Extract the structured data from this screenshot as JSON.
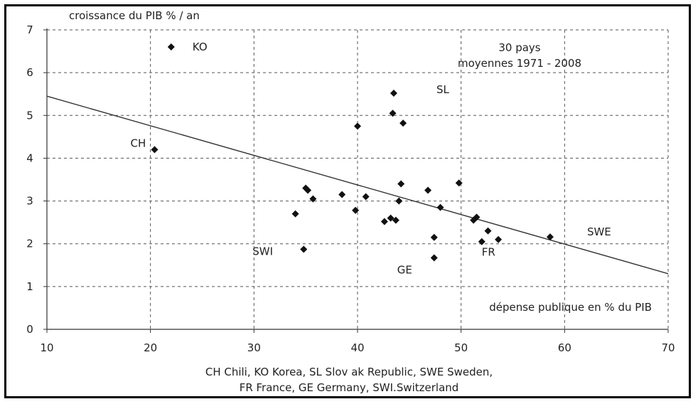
{
  "chart_data": {
    "type": "scatter",
    "ylabel": "croissance du PIB % / an",
    "xlabel": "dépense publique en % du PIB",
    "annotation_lines": [
      "30 pays",
      "moyennes 1971 - 2008"
    ],
    "xlim": [
      10,
      70
    ],
    "ylim": [
      0,
      7
    ],
    "x_ticks": [
      "10",
      "20",
      "30",
      "40",
      "50",
      "60",
      "70"
    ],
    "y_ticks": [
      "0",
      "1",
      "2",
      "3",
      "4",
      "5",
      "6",
      "7"
    ],
    "grid": true,
    "trend_line": {
      "x": [
        10,
        70
      ],
      "y": [
        5.45,
        1.3
      ]
    },
    "points": [
      {
        "x": 22.0,
        "y": 6.6,
        "label": "KO"
      },
      {
        "x": 20.4,
        "y": 4.2,
        "label": "CH"
      },
      {
        "x": 43.5,
        "y": 5.52,
        "label": "SL"
      },
      {
        "x": 43.4,
        "y": 5.05,
        "label": ""
      },
      {
        "x": 44.4,
        "y": 4.82,
        "label": ""
      },
      {
        "x": 40.0,
        "y": 4.75,
        "label": ""
      },
      {
        "x": 35.0,
        "y": 3.3,
        "label": ""
      },
      {
        "x": 35.2,
        "y": 3.25,
        "label": ""
      },
      {
        "x": 35.7,
        "y": 3.05,
        "label": ""
      },
      {
        "x": 38.5,
        "y": 3.15,
        "label": ""
      },
      {
        "x": 40.8,
        "y": 3.1,
        "label": ""
      },
      {
        "x": 39.8,
        "y": 2.78,
        "label": ""
      },
      {
        "x": 34.0,
        "y": 2.7,
        "label": ""
      },
      {
        "x": 44.2,
        "y": 3.4,
        "label": ""
      },
      {
        "x": 44.0,
        "y": 3.0,
        "label": ""
      },
      {
        "x": 46.8,
        "y": 3.25,
        "label": ""
      },
      {
        "x": 49.8,
        "y": 3.42,
        "label": ""
      },
      {
        "x": 48.0,
        "y": 2.85,
        "label": ""
      },
      {
        "x": 42.6,
        "y": 2.52,
        "label": ""
      },
      {
        "x": 43.2,
        "y": 2.6,
        "label": ""
      },
      {
        "x": 43.7,
        "y": 2.55,
        "label": ""
      },
      {
        "x": 51.2,
        "y": 2.55,
        "label": ""
      },
      {
        "x": 51.5,
        "y": 2.62,
        "label": ""
      },
      {
        "x": 52.6,
        "y": 2.3,
        "label": ""
      },
      {
        "x": 53.6,
        "y": 2.1,
        "label": ""
      },
      {
        "x": 52.0,
        "y": 2.05,
        "label": "FR"
      },
      {
        "x": 47.4,
        "y": 2.15,
        "label": ""
      },
      {
        "x": 47.4,
        "y": 1.67,
        "label": "GE"
      },
      {
        "x": 34.8,
        "y": 1.87,
        "label": "SWI"
      },
      {
        "x": 58.6,
        "y": 2.16,
        "label": "SWE"
      }
    ],
    "legend_lines": [
      "CH Chili, KO Korea, SL Slov ak Republic, SWE Sweden,",
      "FR France, GE Germany, SWI.Switzerland"
    ]
  }
}
